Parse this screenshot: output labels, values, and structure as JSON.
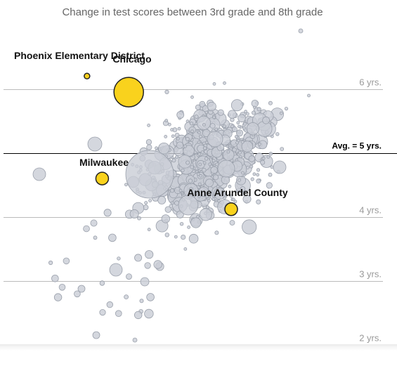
{
  "chart_data": {
    "type": "scatter",
    "title": "Change in test scores between 3rd grade and 8th grade",
    "y_ticks": [
      {
        "value": 6,
        "label": "6 yrs."
      },
      {
        "value": 4,
        "label": "4 yrs."
      },
      {
        "value": 3,
        "label": "3 yrs."
      },
      {
        "value": 2,
        "label": "2 yrs."
      }
    ],
    "average": {
      "value": 5,
      "label": "Avg. = 5 yrs."
    },
    "ylim": [
      1.9,
      6.95
    ],
    "highlighted": [
      {
        "name": "Phoenix Elementary District",
        "x": 0.22,
        "y": 6.2
      },
      {
        "name": "Chicago",
        "x": 0.33,
        "y": 5.95
      },
      {
        "name": "Milwaukee",
        "x": 0.26,
        "y": 4.6
      },
      {
        "name": "Anne Arundel County",
        "x": 0.6,
        "y": 4.12
      }
    ],
    "colors": {
      "highlight_fill": "#f9d21d",
      "highlight_stroke": "#222222",
      "bubble_fill": "#c9cdd6",
      "bubble_stroke": "#9aa0ab",
      "avg_line": "#000000",
      "grid_line": "#bbbbbb"
    }
  }
}
